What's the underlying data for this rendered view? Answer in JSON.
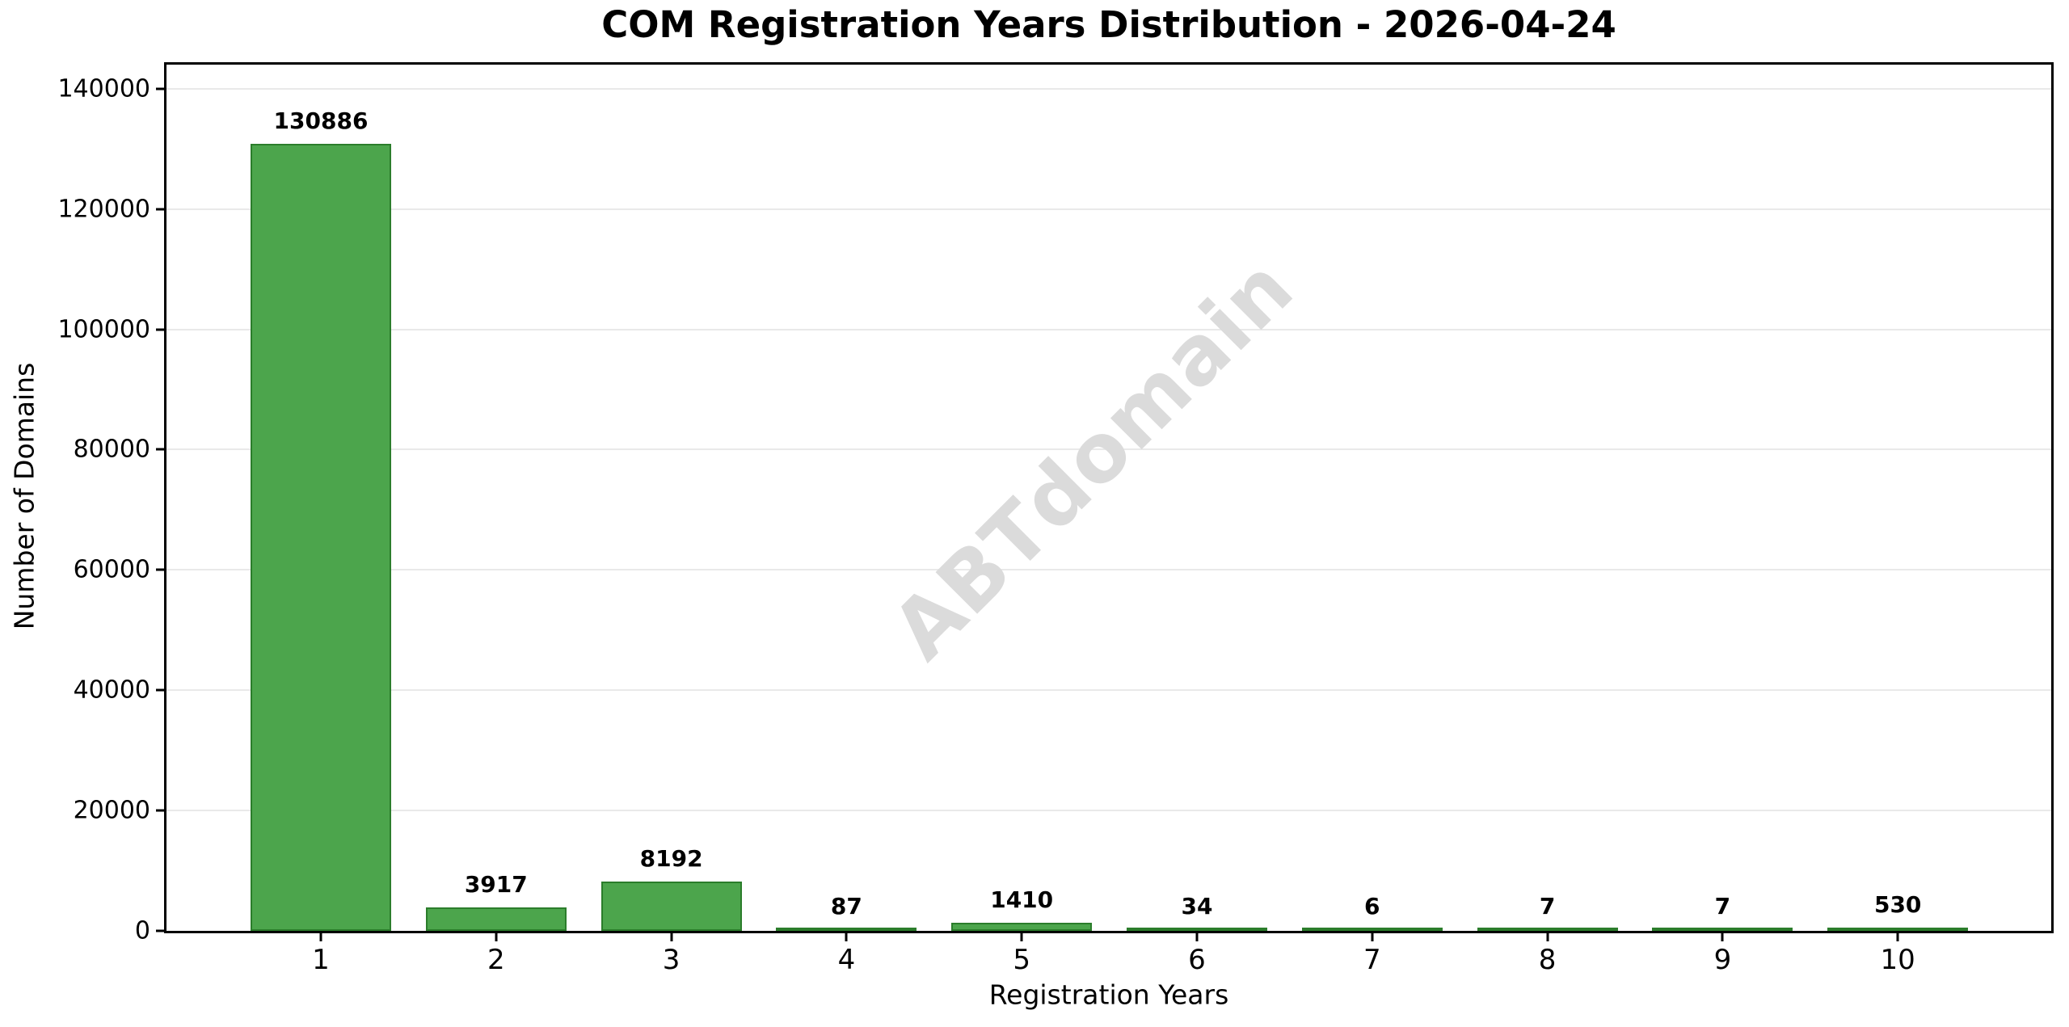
{
  "chart_data": {
    "type": "bar",
    "title": "COM Registration Years Distribution - 2026-04-24",
    "xlabel": "Registration Years",
    "ylabel": "Number of Domains",
    "categories": [
      "1",
      "2",
      "3",
      "4",
      "5",
      "6",
      "7",
      "8",
      "9",
      "10"
    ],
    "values": [
      130886,
      3917,
      8192,
      87,
      1410,
      34,
      6,
      7,
      7,
      530
    ],
    "bar_value_labels": [
      "130886",
      "3917",
      "8192",
      "87",
      "1410",
      "34",
      "6",
      "7",
      "7",
      "530"
    ],
    "ylim": [
      0,
      144000
    ],
    "yticks": [
      0,
      20000,
      40000,
      60000,
      80000,
      100000,
      120000,
      140000
    ],
    "ytick_labels": [
      "0",
      "20000",
      "40000",
      "60000",
      "80000",
      "100000",
      "120000",
      "140000"
    ],
    "grid": true,
    "legend": "none",
    "watermark": "ABTdomain",
    "colors": {
      "bar_fill": "#4CA54C",
      "bar_edge": "#2B7D2B",
      "grid_line": "#E9E9E9",
      "watermark": "#DBDBDB",
      "axis": "#000000",
      "background": "#FFFFFF"
    }
  }
}
